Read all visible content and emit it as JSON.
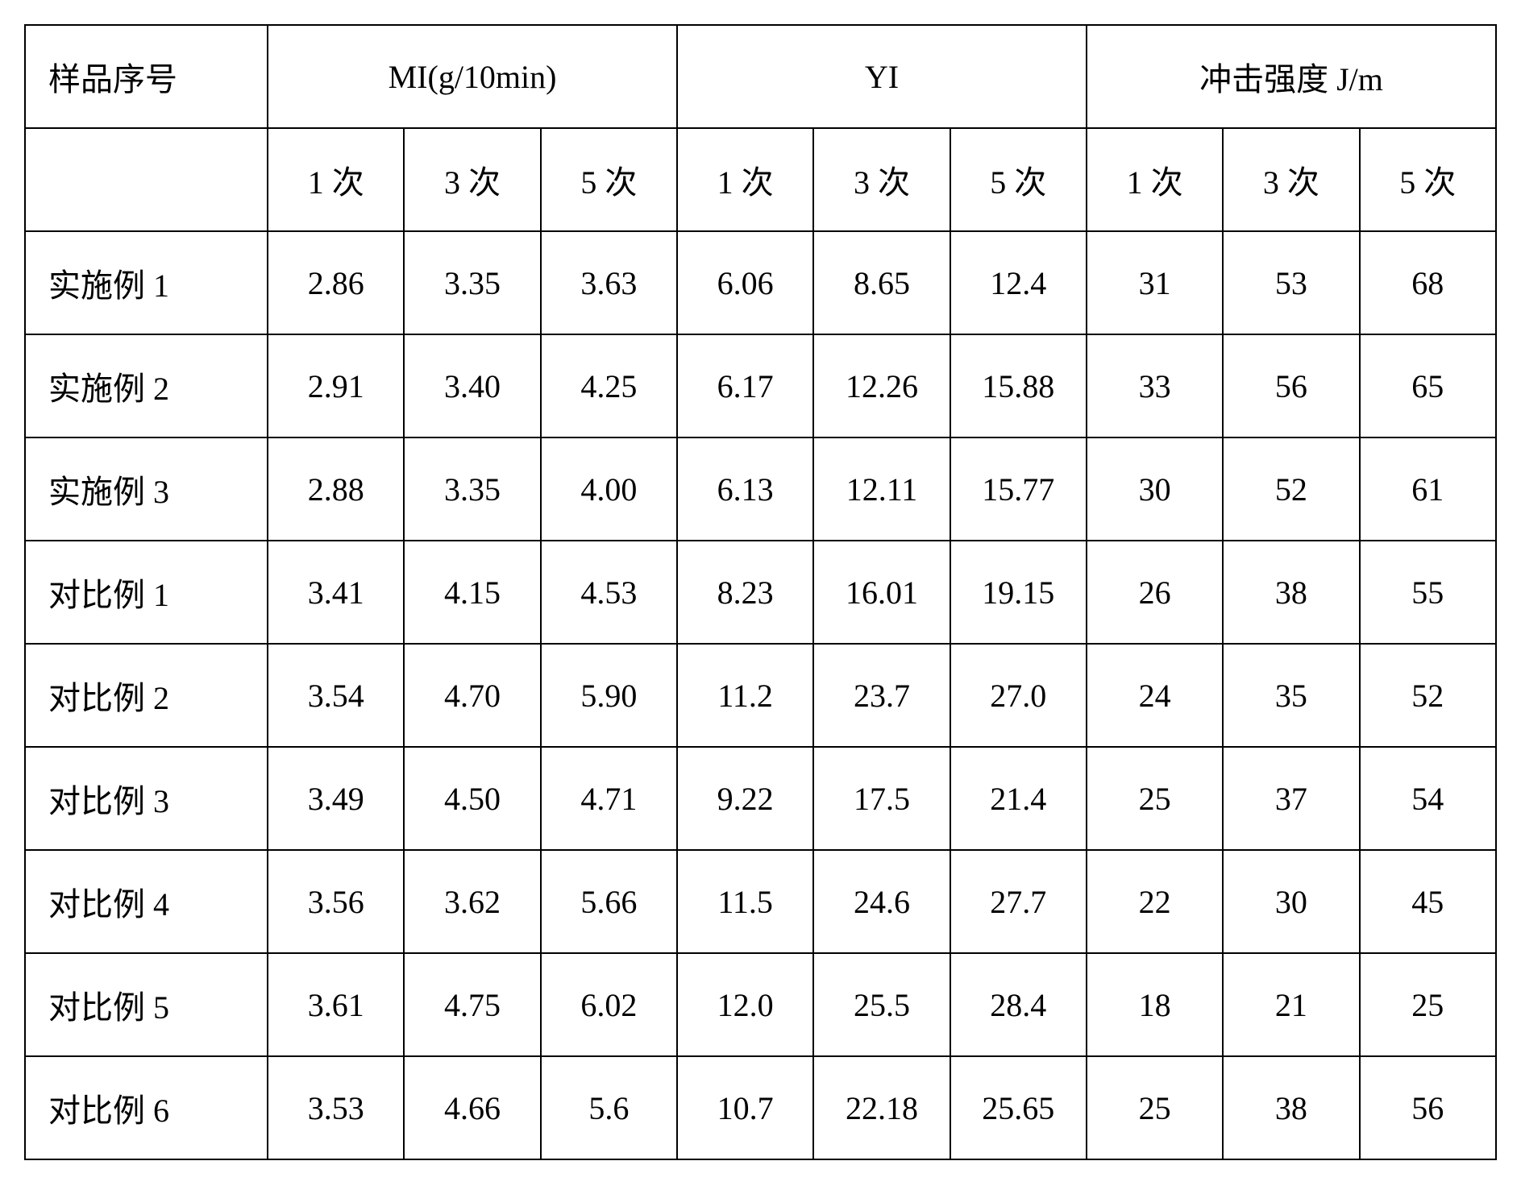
{
  "headers": {
    "sample_no": "样品序号",
    "group_mi": "MI(g/10min)",
    "group_yi": "YI",
    "group_impact": "冲击强度 J/m",
    "sub1": "1 次",
    "sub3": "3 次",
    "sub5": "5 次"
  },
  "rows": [
    {
      "label": "实施例 1",
      "mi": [
        "2.86",
        "3.35",
        "3.63"
      ],
      "yi": [
        "6.06",
        "8.65",
        "12.4"
      ],
      "impact": [
        "31",
        "53",
        "68"
      ]
    },
    {
      "label": "实施例 2",
      "mi": [
        "2.91",
        "3.40",
        "4.25"
      ],
      "yi": [
        "6.17",
        "12.26",
        "15.88"
      ],
      "impact": [
        "33",
        "56",
        "65"
      ]
    },
    {
      "label": "实施例 3",
      "mi": [
        "2.88",
        "3.35",
        "4.00"
      ],
      "yi": [
        "6.13",
        "12.11",
        "15.77"
      ],
      "impact": [
        "30",
        "52",
        "61"
      ]
    },
    {
      "label": "对比例 1",
      "mi": [
        "3.41",
        "4.15",
        "4.53"
      ],
      "yi": [
        "8.23",
        "16.01",
        "19.15"
      ],
      "impact": [
        "26",
        "38",
        "55"
      ]
    },
    {
      "label": "对比例 2",
      "mi": [
        "3.54",
        "4.70",
        "5.90"
      ],
      "yi": [
        "11.2",
        "23.7",
        "27.0"
      ],
      "impact": [
        "24",
        "35",
        "52"
      ]
    },
    {
      "label": "对比例 3",
      "mi": [
        "3.49",
        "4.50",
        "4.71"
      ],
      "yi": [
        "9.22",
        "17.5",
        "21.4"
      ],
      "impact": [
        "25",
        "37",
        "54"
      ]
    },
    {
      "label": "对比例 4",
      "mi": [
        "3.56",
        "3.62",
        "5.66"
      ],
      "yi": [
        "11.5",
        "24.6",
        "27.7"
      ],
      "impact": [
        "22",
        "30",
        "45"
      ]
    },
    {
      "label": "对比例 5",
      "mi": [
        "3.61",
        "4.75",
        "6.02"
      ],
      "yi": [
        "12.0",
        "25.5",
        "28.4"
      ],
      "impact": [
        "18",
        "21",
        "25"
      ]
    },
    {
      "label": "对比例 6",
      "mi": [
        "3.53",
        "4.66",
        "5.6"
      ],
      "yi": [
        "10.7",
        "22.18",
        "25.65"
      ],
      "impact": [
        "25",
        "38",
        "56"
      ]
    }
  ],
  "style": {
    "font_family": "SimSun",
    "font_size_pt": 30,
    "border_color": "#000000",
    "background": "#ffffff",
    "text_color": "#000000"
  }
}
